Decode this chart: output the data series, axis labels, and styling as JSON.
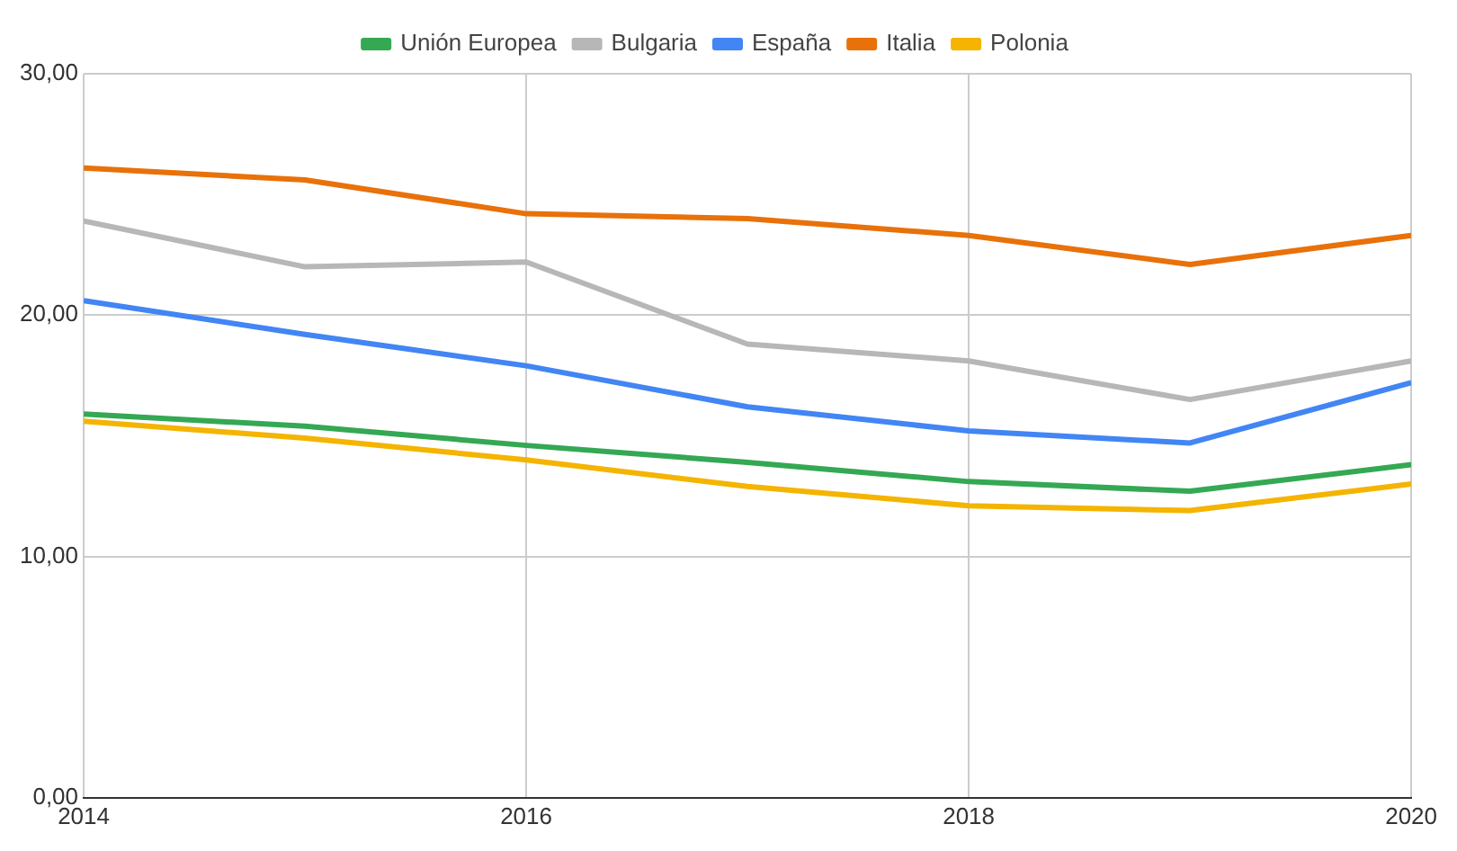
{
  "chart_data": {
    "type": "line",
    "x": [
      2014,
      2015,
      2016,
      2017,
      2018,
      2019,
      2020
    ],
    "series": [
      {
        "name": "Unión Europea",
        "color": "#34a853",
        "values": [
          15.9,
          15.4,
          14.6,
          13.9,
          13.1,
          12.7,
          13.8
        ]
      },
      {
        "name": "Bulgaria",
        "color": "#b7b7b7",
        "values": [
          23.9,
          22.0,
          22.2,
          18.8,
          18.1,
          16.5,
          18.1
        ]
      },
      {
        "name": "España",
        "color": "#4285f4",
        "values": [
          20.6,
          19.2,
          17.9,
          16.2,
          15.2,
          14.7,
          17.2
        ]
      },
      {
        "name": "Italia",
        "color": "#e8710a",
        "values": [
          26.1,
          25.6,
          24.2,
          24.0,
          23.3,
          22.1,
          23.3
        ]
      },
      {
        "name": "Polonia",
        "color": "#f4b400",
        "values": [
          15.6,
          14.9,
          14.0,
          12.9,
          12.1,
          11.9,
          13.0
        ]
      }
    ],
    "xlim": [
      2014,
      2020
    ],
    "xticks": [
      2014,
      2016,
      2018,
      2020
    ],
    "ylim": [
      0,
      30
    ],
    "yticks": [
      {
        "value": 0,
        "label": "0,00"
      },
      {
        "value": 10,
        "label": "10,00"
      },
      {
        "value": 20,
        "label": "20,00"
      },
      {
        "value": 30,
        "label": "30,00"
      }
    ],
    "grid": true,
    "legend": "top",
    "line_style": "solid"
  }
}
